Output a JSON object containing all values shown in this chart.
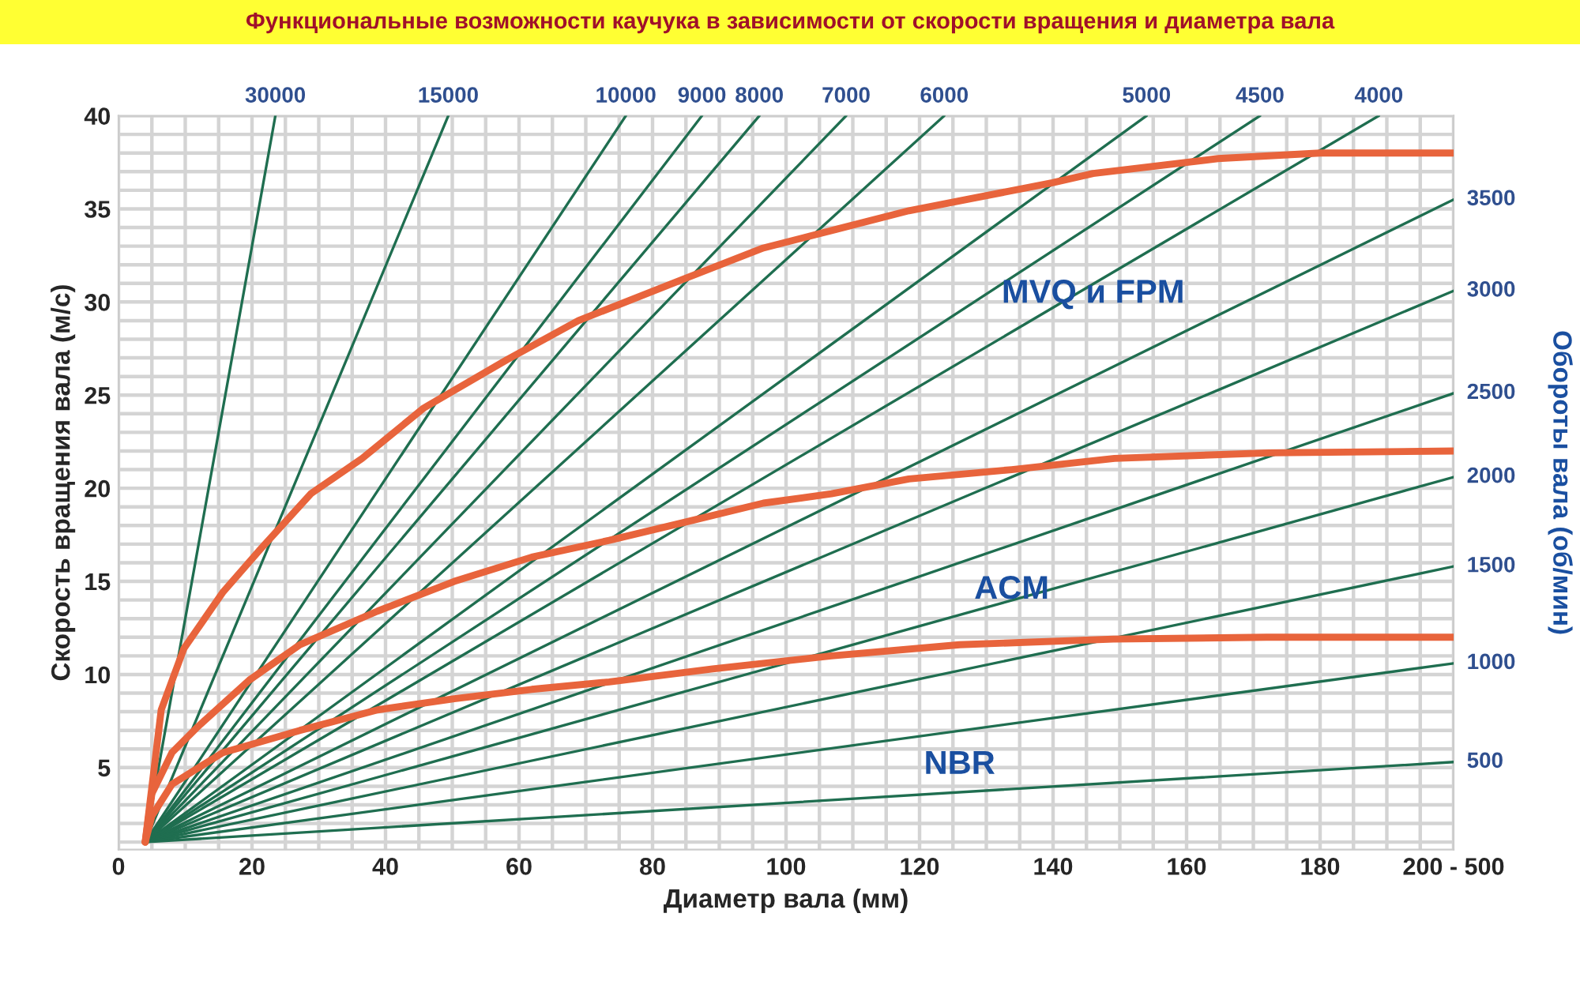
{
  "chart_data": {
    "type": "line",
    "title": "Функциональные возможности каучука в зависимости от скорости вращения и диаметра вала",
    "xlabel": "Диаметр вала (мм)",
    "ylabel": "Скорость вращения вала (м/с)",
    "y2label": "Обороты вала (об/мин)",
    "xlim": [
      0,
      200
    ],
    "ylim": [
      0.6,
      40
    ],
    "xticks": [
      0,
      {
        "value": 5,
        "label": null
      },
      {
        "value": 10,
        "label": null
      },
      {
        "value": 15,
        "label": null
      },
      20,
      {
        "value": 25,
        "label": null
      },
      {
        "value": 30,
        "label": null
      },
      {
        "value": 35,
        "label": null
      },
      40,
      {
        "value": 45,
        "label": null
      },
      {
        "value": 50,
        "label": null
      },
      {
        "value": 55,
        "label": null
      },
      60,
      {
        "value": 65,
        "label": null
      },
      {
        "value": 70,
        "label": null
      },
      {
        "value": 75,
        "label": null
      },
      80,
      {
        "value": 85,
        "label": null
      },
      {
        "value": 90,
        "label": null
      },
      {
        "value": 95,
        "label": null
      },
      100,
      {
        "value": 105,
        "label": null
      },
      {
        "value": 110,
        "label": null
      },
      {
        "value": 115,
        "label": null
      },
      120,
      {
        "value": 125,
        "label": null
      },
      {
        "value": 130,
        "label": null
      },
      {
        "value": 135,
        "label": null
      },
      140,
      {
        "value": 145,
        "label": null
      },
      {
        "value": 150,
        "label": null
      },
      {
        "value": 155,
        "label": null
      },
      160,
      {
        "value": 165,
        "label": null
      },
      {
        "value": 170,
        "label": null
      },
      {
        "value": 175,
        "label": null
      },
      180,
      {
        "value": 185,
        "label": null
      },
      {
        "value": 190,
        "label": null
      },
      {
        "value": 195,
        "label": null
      },
      {
        "value": 200,
        "label": "200 - 500"
      }
    ],
    "yticks": [
      {
        "value": 1,
        "label": null
      },
      {
        "value": 2,
        "label": null
      },
      {
        "value": 3,
        "label": null
      },
      {
        "value": 4,
        "label": null
      },
      5,
      {
        "value": 6,
        "label": null
      },
      {
        "value": 7,
        "label": null
      },
      {
        "value": 8,
        "label": null
      },
      {
        "value": 9,
        "label": null
      },
      10,
      {
        "value": 11,
        "label": null
      },
      {
        "value": 12,
        "label": null
      },
      {
        "value": 13,
        "label": null
      },
      {
        "value": 14,
        "label": null
      },
      15,
      {
        "value": 16,
        "label": null
      },
      {
        "value": 17,
        "label": null
      },
      {
        "value": 18,
        "label": null
      },
      {
        "value": 19,
        "label": null
      },
      20,
      {
        "value": 21,
        "label": null
      },
      {
        "value": 22,
        "label": null
      },
      {
        "value": 23,
        "label": null
      },
      {
        "value": 24,
        "label": null
      },
      25,
      {
        "value": 26,
        "label": null
      },
      {
        "value": 27,
        "label": null
      },
      {
        "value": 28,
        "label": null
      },
      {
        "value": 29,
        "label": null
      },
      30,
      {
        "value": 31,
        "label": null
      },
      {
        "value": 32,
        "label": null
      },
      {
        "value": 33,
        "label": null
      },
      {
        "value": 34,
        "label": null
      },
      35,
      {
        "value": 36,
        "label": null
      },
      {
        "value": 37,
        "label": null
      },
      {
        "value": 38,
        "label": null
      },
      {
        "value": 39,
        "label": null
      },
      40
    ],
    "grid": true,
    "series": [
      {
        "name": "30000",
        "color": "#1f6e50",
        "x": [
          4,
          23.5
        ],
        "values": [
          1,
          40
        ]
      },
      {
        "name": "15000",
        "color": "#1f6e50",
        "x": [
          4,
          49.4
        ],
        "values": [
          1,
          40
        ]
      },
      {
        "name": "10000",
        "color": "#1f6e50",
        "x": [
          4,
          76
        ],
        "values": [
          1,
          40
        ]
      },
      {
        "name": "9000",
        "color": "#1f6e50",
        "x": [
          4,
          87.4
        ],
        "values": [
          1,
          40
        ]
      },
      {
        "name": "8000",
        "color": "#1f6e50",
        "x": [
          4,
          96
        ],
        "values": [
          1,
          40
        ]
      },
      {
        "name": "7000",
        "color": "#1f6e50",
        "x": [
          4,
          109
        ],
        "values": [
          1,
          40
        ]
      },
      {
        "name": "6000",
        "color": "#1f6e50",
        "x": [
          4,
          123.7
        ],
        "values": [
          1,
          40
        ]
      },
      {
        "name": "5000",
        "color": "#1f6e50",
        "x": [
          4,
          154
        ],
        "values": [
          1,
          40
        ]
      },
      {
        "name": "4500",
        "color": "#1f6e50",
        "x": [
          4,
          171
        ],
        "values": [
          1,
          40
        ]
      },
      {
        "name": "4000",
        "color": "#1f6e50",
        "x": [
          4,
          188.8
        ],
        "values": [
          1,
          40
        ]
      },
      {
        "name": "3500",
        "color": "#1f6e50",
        "x": [
          4,
          200
        ],
        "values": [
          1,
          35.5
        ]
      },
      {
        "name": "3000",
        "color": "#1f6e50",
        "x": [
          4,
          200
        ],
        "values": [
          1,
          30.6
        ]
      },
      {
        "name": "2500",
        "color": "#1f6e50",
        "x": [
          4,
          200
        ],
        "values": [
          1,
          25.1
        ]
      },
      {
        "name": "2000",
        "color": "#1f6e50",
        "x": [
          4,
          200
        ],
        "values": [
          1,
          20.6
        ]
      },
      {
        "name": "1500",
        "color": "#1f6e50",
        "x": [
          4,
          200
        ],
        "values": [
          1,
          15.8
        ]
      },
      {
        "name": "1000",
        "color": "#1f6e50",
        "x": [
          4,
          200
        ],
        "values": [
          1,
          10.6
        ]
      },
      {
        "name": "500",
        "color": "#1f6e50",
        "x": [
          4,
          200
        ],
        "values": [
          1,
          5.3
        ]
      },
      {
        "color": "#e8643c",
        "x": [
          4,
          6.4,
          9.8,
          15.6,
          21.2,
          28.8,
          36.5,
          45.7,
          58.2,
          68.9,
          84.4,
          96.6,
          107.5,
          118.4,
          139.9,
          146,
          164.7,
          180,
          200
        ],
        "values": [
          1,
          8.1,
          11.4,
          14.4,
          16.7,
          19.7,
          21.6,
          24.3,
          26.9,
          29.0,
          31.2,
          32.9,
          33.9,
          34.9,
          36.4,
          36.9,
          37.7,
          38.0,
          38.0
        ]
      },
      {
        "color": "#e8643c",
        "x": [
          4,
          5,
          8,
          11.9,
          19.6,
          27.2,
          38.8,
          50.3,
          61.9,
          73.5,
          85.1,
          96.6,
          106.8,
          118.4,
          133.8,
          149.2,
          172.3,
          200
        ],
        "values": [
          1,
          3.6,
          5.8,
          7.2,
          9.7,
          11.6,
          13.4,
          15.0,
          16.3,
          17.2,
          18.2,
          19.2,
          19.7,
          20.5,
          21.0,
          21.6,
          21.9,
          22.0
        ]
      },
      {
        "color": "#e8643c",
        "x": [
          4,
          5,
          8,
          15.6,
          27.2,
          38.8,
          50.3,
          61.9,
          73.5,
          89,
          106.8,
          126,
          149,
          172,
          200
        ],
        "values": [
          1,
          2.4,
          4.1,
          5.8,
          7.0,
          8.1,
          8.7,
          9.2,
          9.6,
          10.3,
          11.0,
          11.6,
          11.9,
          12.0,
          12.0
        ]
      }
    ],
    "annotations": [
      "MVQ и FPM",
      "ACM",
      "NBR"
    ]
  }
}
